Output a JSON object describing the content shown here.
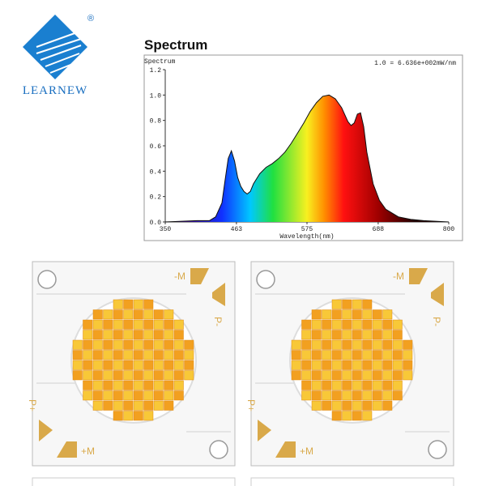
{
  "logo": {
    "name": "LEARNEW",
    "mark": "®"
  },
  "chart_data": {
    "type": "area",
    "title": "Spectrum",
    "ylabel": "Spectrum",
    "xlabel": "Wavelength(nm)",
    "annotation": "1.0 = 6.636e+002mW/nm",
    "x": [
      350,
      400,
      420,
      430,
      440,
      445,
      450,
      455,
      460,
      465,
      470,
      475,
      480,
      485,
      490,
      500,
      510,
      520,
      530,
      540,
      550,
      560,
      570,
      580,
      590,
      600,
      610,
      620,
      630,
      640,
      645,
      650,
      655,
      660,
      665,
      670,
      680,
      690,
      700,
      720,
      740,
      760,
      800
    ],
    "values": [
      0,
      0.01,
      0.01,
      0.04,
      0.15,
      0.33,
      0.5,
      0.56,
      0.48,
      0.35,
      0.28,
      0.24,
      0.22,
      0.24,
      0.3,
      0.38,
      0.43,
      0.46,
      0.5,
      0.55,
      0.62,
      0.7,
      0.78,
      0.87,
      0.94,
      0.99,
      1.0,
      0.97,
      0.9,
      0.79,
      0.76,
      0.78,
      0.85,
      0.86,
      0.75,
      0.55,
      0.3,
      0.17,
      0.1,
      0.04,
      0.02,
      0.01,
      0
    ],
    "xlim": [
      350,
      800
    ],
    "xticks": [
      350,
      463,
      575,
      688,
      800
    ],
    "ylim": [
      0,
      1.2
    ],
    "yticks": [
      {
        "value": 0,
        "label": "0.0"
      },
      0.2,
      0.4,
      0.6,
      0.8,
      {
        "value": 1,
        "label": "1.0"
      },
      1.2
    ]
  },
  "boards": [
    {
      "labels": [
        "-M",
        "P-",
        "P+",
        "+M"
      ]
    },
    {
      "labels": [
        "-M",
        "P-",
        "P+",
        "+M"
      ]
    }
  ]
}
